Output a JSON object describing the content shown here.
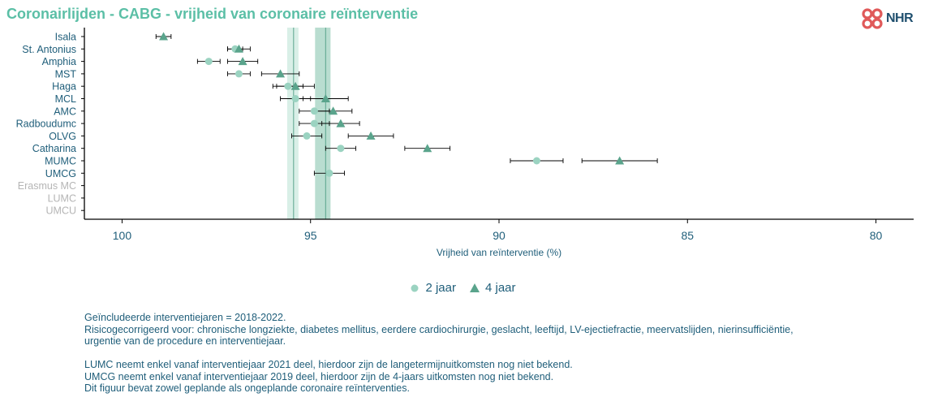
{
  "title": "Coronairlijden - CABG - vrijheid van coronaire reïnterventie",
  "logo": {
    "text": "NHR",
    "color": "#e05a5a"
  },
  "chart_data": {
    "type": "scatter",
    "title": "Coronairlijden - CABG - vrijheid van coronaire reïnterventie",
    "xlabel": "Vrijheid van reïnterventie (%)",
    "ylabel": "",
    "xlim": [
      101,
      79
    ],
    "x_reversed": true,
    "x_ticks": [
      100,
      95,
      90,
      85,
      80
    ],
    "categories": [
      "Isala",
      "St. Antonius",
      "Amphia",
      "MST",
      "Haga",
      "MCL",
      "AMC",
      "Radboudumc",
      "OLVG",
      "Catharina",
      "MUMC",
      "UMCG",
      "Erasmus MC",
      "LUMC",
      "UMCU"
    ],
    "greyed_categories": [
      "Erasmus MC",
      "LUMC",
      "UMCU"
    ],
    "series": [
      {
        "name": "2 jaar",
        "marker": "circle",
        "color": "#9bd3c1",
        "values": [
          null,
          97.0,
          97.7,
          96.9,
          95.6,
          95.4,
          94.9,
          94.9,
          95.1,
          94.2,
          89.0,
          94.5,
          null,
          null,
          null
        ],
        "ci_low": [
          null,
          96.8,
          97.4,
          96.6,
          95.2,
          95.0,
          94.5,
          94.5,
          94.7,
          93.8,
          88.3,
          94.1,
          null,
          null,
          null
        ],
        "ci_high": [
          null,
          97.2,
          98.0,
          97.2,
          96.0,
          95.8,
          95.3,
          95.3,
          95.5,
          94.6,
          89.7,
          94.9,
          null,
          null,
          null
        ],
        "benchmark": 95.45,
        "benchmark_band": [
          95.32,
          95.62
        ]
      },
      {
        "name": "4 jaar",
        "marker": "triangle",
        "color": "#5aa48c",
        "values": [
          98.9,
          96.9,
          96.8,
          95.8,
          95.4,
          94.6,
          94.4,
          94.2,
          93.4,
          91.9,
          86.8,
          null,
          null,
          null,
          null
        ],
        "ci_low": [
          98.7,
          96.6,
          96.4,
          95.3,
          94.9,
          94.0,
          93.9,
          93.7,
          92.8,
          91.3,
          85.8,
          null,
          null,
          null,
          null
        ],
        "ci_high": [
          99.1,
          97.2,
          97.2,
          96.3,
          95.9,
          95.2,
          94.9,
          94.7,
          94.0,
          92.5,
          87.8,
          null,
          null,
          null,
          null
        ],
        "benchmark": 94.6,
        "benchmark_band": [
          94.47,
          94.88
        ]
      }
    ],
    "grid": false,
    "legend_position": "bottom-center"
  },
  "legend": [
    {
      "label": "2 jaar",
      "marker": "circle",
      "color": "#9bd3c1"
    },
    {
      "label": "4 jaar",
      "marker": "triangle",
      "color": "#5aa48c"
    }
  ],
  "notes": [
    "Geïncludeerde interventiejaren = 2018-2022.",
    "Risicogecorrigeerd voor: chronische longziekte, diabetes mellitus, eerdere cardiochirurgie, geslacht, leeftijd, LV-ejectiefractie, meervatslijden, nierinsufficiëntie,",
    "urgentie van de procedure en interventiejaar.",
    "",
    "LUMC neemt enkel vanaf interventiejaar 2021 deel, hierdoor zijn de langetermijnuitkomsten nog niet bekend.",
    "UMCG neemt enkel vanaf interventiejaar 2019 deel, hierdoor zijn de 4-jaars uitkomsten nog niet bekend.",
    "Dit figuur bevat zowel geplande als ongeplande coronaire reïnterventies."
  ],
  "colors": {
    "title": "#5bbfa6",
    "text": "#1f5e7a",
    "greyed": "#b5b5b5",
    "band_light": "#d9efe7",
    "band_dark": "#b9ddd0",
    "benchmark_line": "#5aa48c"
  }
}
